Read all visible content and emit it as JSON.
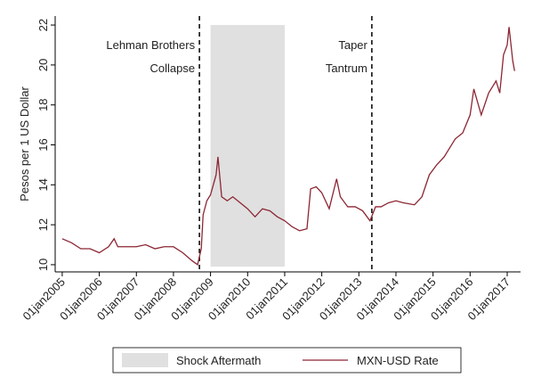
{
  "chart_data": {
    "type": "line",
    "y_label": "Pesos per 1 US Dollar",
    "x": [
      2005.0,
      2005.25,
      2005.5,
      2005.75,
      2006.0,
      2006.25,
      2006.4,
      2006.5,
      2006.75,
      2007.0,
      2007.25,
      2007.5,
      2007.75,
      2008.0,
      2008.25,
      2008.5,
      2008.65,
      2008.75,
      2008.8,
      2008.9,
      2009.0,
      2009.15,
      2009.2,
      2009.3,
      2009.45,
      2009.6,
      2009.8,
      2010.0,
      2010.2,
      2010.4,
      2010.6,
      2010.8,
      2011.0,
      2011.2,
      2011.4,
      2011.6,
      2011.7,
      2011.85,
      2012.0,
      2012.2,
      2012.4,
      2012.5,
      2012.7,
      2012.9,
      2013.1,
      2013.3,
      2013.45,
      2013.6,
      2013.8,
      2014.0,
      2014.2,
      2014.5,
      2014.7,
      2014.9,
      2015.1,
      2015.3,
      2015.6,
      2015.8,
      2016.0,
      2016.1,
      2016.3,
      2016.5,
      2016.7,
      2016.8,
      2016.9,
      2017.0,
      2017.05,
      2017.15,
      2017.2
    ],
    "series": [
      {
        "name": "MXN-USD Rate",
        "color": "#8c2633",
        "values": [
          11.3,
          11.1,
          10.8,
          10.8,
          10.6,
          10.9,
          11.3,
          10.9,
          10.9,
          10.9,
          11.0,
          10.8,
          10.9,
          10.9,
          10.6,
          10.2,
          10.0,
          10.8,
          12.5,
          13.2,
          13.5,
          14.5,
          15.4,
          13.4,
          13.2,
          13.4,
          13.1,
          12.8,
          12.4,
          12.8,
          12.7,
          12.4,
          12.2,
          11.9,
          11.7,
          11.8,
          13.8,
          13.9,
          13.6,
          12.8,
          14.3,
          13.4,
          12.9,
          12.9,
          12.7,
          12.2,
          12.9,
          12.9,
          13.1,
          13.2,
          13.1,
          13.0,
          13.4,
          14.5,
          15.0,
          15.4,
          16.3,
          16.6,
          17.5,
          18.8,
          17.5,
          18.6,
          19.2,
          18.6,
          20.5,
          21.0,
          21.9,
          20.2,
          19.7
        ]
      }
    ],
    "shade": {
      "name": "Shock Aftermath",
      "color": "#e0e0e0",
      "x": [
        2009.0,
        2011.0
      ],
      "y": [
        9.9,
        22
      ]
    },
    "vlines": [
      {
        "x": 2008.7,
        "label": [
          "Lehman Brothers",
          "Collapse"
        ]
      },
      {
        "x": 2013.35,
        "label": [
          "Taper",
          "Tantrum"
        ]
      }
    ],
    "xlim": [
      2004.81,
      2017.36
    ],
    "ylim": [
      9.64,
      22.45
    ],
    "xticks": [
      {
        "value": 2005,
        "label": "01jan2005"
      },
      {
        "value": 2006,
        "label": "01jan2006"
      },
      {
        "value": 2007,
        "label": "01jan2007"
      },
      {
        "value": 2008,
        "label": "01jan2008"
      },
      {
        "value": 2009,
        "label": "01jan2009"
      },
      {
        "value": 2010,
        "label": "01jan2010"
      },
      {
        "value": 2011,
        "label": "01jan2011"
      },
      {
        "value": 2012,
        "label": "01jan2012"
      },
      {
        "value": 2013,
        "label": "01jan2013"
      },
      {
        "value": 2014,
        "label": "01jan2014"
      },
      {
        "value": 2015,
        "label": "01jan2015"
      },
      {
        "value": 2016,
        "label": "01jan2016"
      },
      {
        "value": 2017,
        "label": "01jan2017"
      }
    ],
    "yticks": [
      10,
      12,
      14,
      16,
      18,
      20,
      22
    ]
  }
}
